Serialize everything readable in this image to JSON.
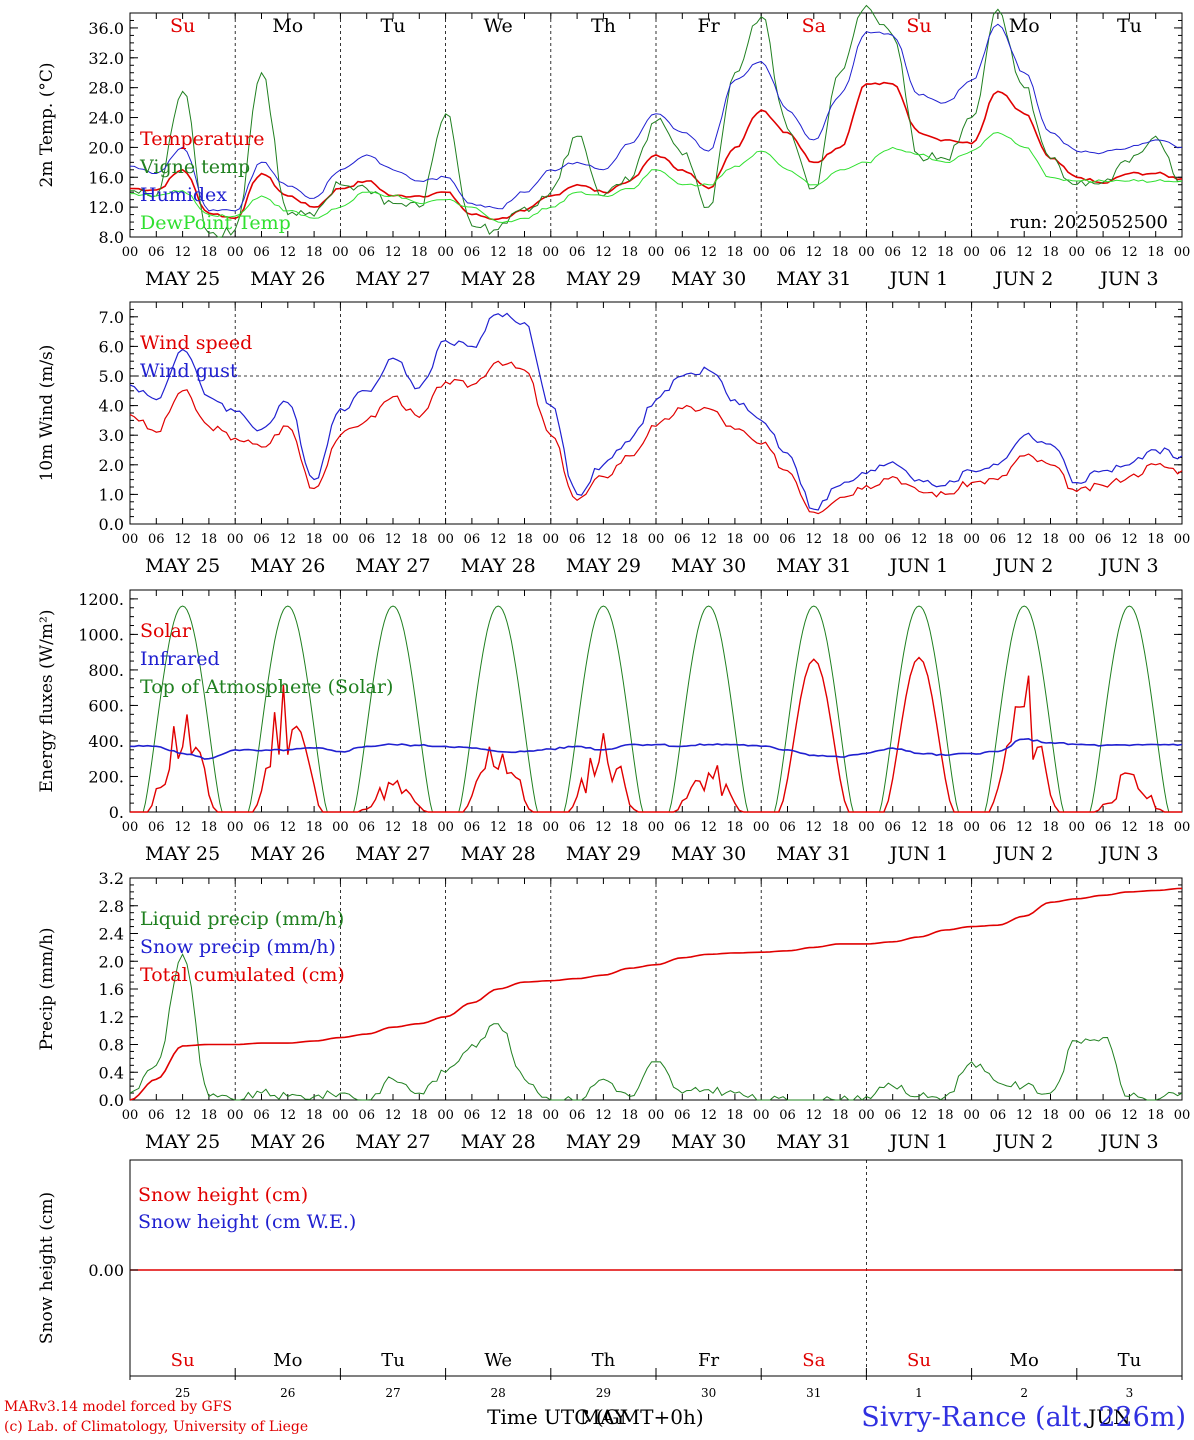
{
  "footer": {
    "credit_model": "MARv3.14 model forced by GFS",
    "credit_lab": "(c) Lab. of Climatology, University of Liege",
    "station": "Sivry-Rance (alt. 226m)"
  },
  "chart_data": [
    {
      "type": "line",
      "ylabel": "2m Temp. (°C)",
      "ylim": [
        8,
        38
      ],
      "yticks": [
        "8.0",
        "12.0",
        "16.0",
        "20.0",
        "24.0",
        "28.0",
        "32.0",
        "36.0"
      ],
      "run_label": "run: 2025052500",
      "weekdays": [
        {
          "label": "Su",
          "color": "#e00000"
        },
        {
          "label": "Mo",
          "color": "#000000"
        },
        {
          "label": "Tu",
          "color": "#000000"
        },
        {
          "label": "We",
          "color": "#000000"
        },
        {
          "label": "Th",
          "color": "#000000"
        },
        {
          "label": "Fr",
          "color": "#000000"
        },
        {
          "label": "Sa",
          "color": "#e00000"
        },
        {
          "label": "Su",
          "color": "#e00000"
        },
        {
          "label": "Mo",
          "color": "#000000"
        },
        {
          "label": "Tu",
          "color": "#000000"
        }
      ],
      "x_hours": [
        0,
        6,
        12,
        18,
        24,
        30,
        36,
        42,
        48,
        54,
        60,
        66,
        72,
        78,
        84,
        90,
        96,
        102,
        108,
        114,
        120,
        126,
        132,
        138,
        144,
        150,
        156,
        162,
        168,
        174,
        180,
        186,
        192,
        198,
        204,
        210,
        216,
        222,
        228,
        234,
        240
      ],
      "series": [
        {
          "name": "Temperature",
          "color": "#e00000",
          "values": [
            14.5,
            14.3,
            17.0,
            11.2,
            10.5,
            16.5,
            13.5,
            12.0,
            14.5,
            15.5,
            13.5,
            13.5,
            14.0,
            11.0,
            10.4,
            11.5,
            13.5,
            15.0,
            14.0,
            15.5,
            19.0,
            17.0,
            14.5,
            20.0,
            25.0,
            22.0,
            18.0,
            20.0,
            28.5,
            28.5,
            22.0,
            21.0,
            20.5,
            27.5,
            24.5,
            18.5,
            16.0,
            15.2,
            16.5,
            16.5,
            15.8
          ]
        },
        {
          "name": "Vigne temp",
          "color": "#208020",
          "values": [
            14.2,
            13.5,
            27.5,
            8.5,
            9.0,
            30.0,
            11.0,
            10.8,
            15.0,
            14.5,
            12.5,
            12.0,
            24.5,
            9.5,
            9.0,
            12.0,
            14.0,
            21.5,
            13.5,
            15.5,
            23.5,
            19.0,
            12.0,
            30.0,
            37.5,
            22.5,
            14.5,
            30.0,
            39.0,
            35.0,
            19.0,
            18.5,
            24.0,
            38.5,
            28.0,
            18.5,
            15.0,
            15.3,
            18.0,
            21.5,
            15.5
          ]
        },
        {
          "name": "Humidex",
          "color": "#2020d0",
          "values": [
            17.5,
            16.5,
            20.0,
            11.5,
            11.5,
            18.0,
            14.8,
            13.2,
            17.0,
            19.0,
            17.0,
            15.5,
            16.0,
            12.5,
            11.8,
            14.0,
            17.0,
            18.0,
            17.0,
            20.5,
            24.5,
            22.0,
            19.5,
            29.0,
            31.5,
            25.0,
            21.0,
            27.0,
            35.5,
            35.0,
            27.0,
            26.0,
            29.0,
            36.5,
            30.0,
            22.0,
            19.5,
            19.3,
            20.0,
            21.0,
            20.0
          ]
        },
        {
          "name": "DewPoint Temp",
          "color": "#30e030",
          "values": [
            13.8,
            13.5,
            14.2,
            11.0,
            10.8,
            13.5,
            11.5,
            10.5,
            12.0,
            14.0,
            13.5,
            12.5,
            13.0,
            12.0,
            10.0,
            10.5,
            12.0,
            14.0,
            13.5,
            14.5,
            17.0,
            15.0,
            15.0,
            17.5,
            19.5,
            17.0,
            15.0,
            17.0,
            18.0,
            20.0,
            19.0,
            18.0,
            19.5,
            22.0,
            20.0,
            16.0,
            15.5,
            15.5,
            15.5,
            15.5,
            15.5
          ]
        }
      ]
    },
    {
      "type": "line",
      "ylabel": "10m Wind (m/s)",
      "ylim": [
        0,
        7.5
      ],
      "yticks": [
        "0.0",
        "1.0",
        "2.0",
        "3.0",
        "4.0",
        "5.0",
        "6.0",
        "7.0"
      ],
      "ref_line": 5.0,
      "x_hours": [
        0,
        6,
        12,
        18,
        24,
        30,
        36,
        42,
        48,
        54,
        60,
        66,
        72,
        78,
        84,
        90,
        96,
        102,
        108,
        114,
        120,
        126,
        132,
        138,
        144,
        150,
        156,
        162,
        168,
        174,
        180,
        186,
        192,
        198,
        204,
        210,
        216,
        222,
        228,
        234,
        240
      ],
      "series": [
        {
          "name": "Wind speed",
          "color": "#e00000",
          "values": [
            3.7,
            3.1,
            4.5,
            3.3,
            2.9,
            2.6,
            3.3,
            1.2,
            3.0,
            3.5,
            4.3,
            3.6,
            4.8,
            4.7,
            5.5,
            5.2,
            3.0,
            0.8,
            1.6,
            2.3,
            3.3,
            3.9,
            3.9,
            3.2,
            2.7,
            1.8,
            0.4,
            0.9,
            1.3,
            1.6,
            1.1,
            1.0,
            1.4,
            1.5,
            2.3,
            2.0,
            1.1,
            1.3,
            1.6,
            2.0,
            1.8
          ]
        },
        {
          "name": "Wind gust",
          "color": "#2020d0",
          "values": [
            4.7,
            4.2,
            5.9,
            4.3,
            3.8,
            3.2,
            4.1,
            1.5,
            3.9,
            4.5,
            5.6,
            4.6,
            6.2,
            6.0,
            7.1,
            6.8,
            4.0,
            1.0,
            2.0,
            2.8,
            4.2,
            5.0,
            5.2,
            4.2,
            3.5,
            2.4,
            0.5,
            1.3,
            1.7,
            2.1,
            1.5,
            1.3,
            1.8,
            2.0,
            3.0,
            2.7,
            1.4,
            1.8,
            2.0,
            2.5,
            2.3
          ]
        }
      ]
    },
    {
      "type": "line",
      "ylabel": "Energy fluxes (W/m²)",
      "ylim": [
        0,
        1250
      ],
      "yticks": [
        "0.",
        "200.",
        "400.",
        "600.",
        "800.",
        "1000.",
        "1200."
      ],
      "series": [
        {
          "name": "Solar",
          "color": "#e00000",
          "day_peaks": [
            650,
            860,
            200,
            500,
            500,
            300,
            860,
            870,
            830,
            240
          ]
        },
        {
          "name": "Infrared",
          "color": "#2020d0",
          "values": [
            370,
            370,
            330,
            300,
            350,
            345,
            350,
            360,
            340,
            370,
            380,
            375,
            370,
            360,
            340,
            340,
            355,
            370,
            350,
            380,
            380,
            370,
            380,
            380,
            370,
            350,
            320,
            310,
            330,
            360,
            330,
            320,
            330,
            340,
            410,
            390,
            380,
            375,
            375,
            380,
            380
          ]
        },
        {
          "name": "Top of Atmosphere (Solar)",
          "color": "#208020",
          "peak": 1160
        }
      ]
    },
    {
      "type": "line",
      "ylabel": "Precip (mm/h)",
      "ylim": [
        0,
        3.2
      ],
      "yticks": [
        "0.0",
        "0.4",
        "0.8",
        "1.2",
        "1.6",
        "2.0",
        "2.4",
        "2.8",
        "3.2"
      ],
      "x_hours": [
        0,
        6,
        12,
        18,
        24,
        30,
        36,
        42,
        48,
        54,
        60,
        66,
        72,
        78,
        84,
        90,
        96,
        102,
        108,
        114,
        120,
        126,
        132,
        138,
        144,
        150,
        156,
        162,
        168,
        174,
        180,
        186,
        192,
        198,
        204,
        210,
        216,
        222,
        228,
        234,
        240
      ],
      "series": [
        {
          "name": "Liquid precip (mm/h)",
          "color": "#208020",
          "values": [
            0.1,
            0.5,
            2.1,
            0.05,
            0.0,
            0.1,
            0.05,
            0.05,
            0.1,
            0.0,
            0.3,
            0.1,
            0.4,
            0.8,
            1.1,
            0.3,
            0.0,
            0.0,
            0.3,
            0.05,
            0.55,
            0.1,
            0.15,
            0.1,
            0.0,
            0.0,
            0.0,
            0.0,
            0.05,
            0.2,
            0.05,
            0.05,
            0.55,
            0.25,
            0.2,
            0.1,
            0.85,
            0.9,
            0.05,
            0.0,
            0.1
          ]
        },
        {
          "name": "Snow precip (mm/h)",
          "color": "#2020d0",
          "values": []
        },
        {
          "name": "Total cumulated (cm)",
          "color": "#e00000",
          "values": [
            0.0,
            0.3,
            0.78,
            0.8,
            0.8,
            0.82,
            0.82,
            0.85,
            0.9,
            0.95,
            1.05,
            1.1,
            1.2,
            1.4,
            1.6,
            1.7,
            1.72,
            1.75,
            1.8,
            1.9,
            1.95,
            2.05,
            2.1,
            2.12,
            2.13,
            2.15,
            2.2,
            2.25,
            2.25,
            2.28,
            2.35,
            2.45,
            2.5,
            2.52,
            2.65,
            2.85,
            2.9,
            2.95,
            3.0,
            3.02,
            3.05
          ]
        }
      ]
    },
    {
      "type": "line",
      "ylabel": "Snow height (cm)",
      "yticks": [
        "0.00"
      ],
      "series": [
        {
          "name": "Snow height (cm)",
          "color": "#e00000",
          "values": [
            0,
            0
          ]
        },
        {
          "name": "Snow height (cm W.E.)",
          "color": "#2020d0",
          "values": []
        }
      ],
      "weekdays": [
        {
          "label": "Su",
          "color": "#e00000"
        },
        {
          "label": "Mo",
          "color": "#000000"
        },
        {
          "label": "Tu",
          "color": "#000000"
        },
        {
          "label": "We",
          "color": "#000000"
        },
        {
          "label": "Th",
          "color": "#000000"
        },
        {
          "label": "Fr",
          "color": "#000000"
        },
        {
          "label": "Sa",
          "color": "#e00000"
        },
        {
          "label": "Su",
          "color": "#e00000"
        },
        {
          "label": "Mo",
          "color": "#000000"
        },
        {
          "label": "Tu",
          "color": "#000000"
        }
      ],
      "day_numbers": [
        "25",
        "26",
        "27",
        "28",
        "29",
        "30",
        "31",
        "1",
        "2",
        "3"
      ],
      "xlabel": "Time UTC (GMT+0h)",
      "month_labels": [
        "MAY",
        "JUN"
      ]
    }
  ],
  "shared_x": {
    "hour_ticks": [
      "00",
      "06",
      "12",
      "18"
    ],
    "final_tick": "00",
    "dates": [
      "MAY 25",
      "MAY 26",
      "MAY 27",
      "MAY 28",
      "MAY 29",
      "MAY 30",
      "MAY 31",
      "JUN 1",
      "JUN 2",
      "JUN 3"
    ]
  }
}
